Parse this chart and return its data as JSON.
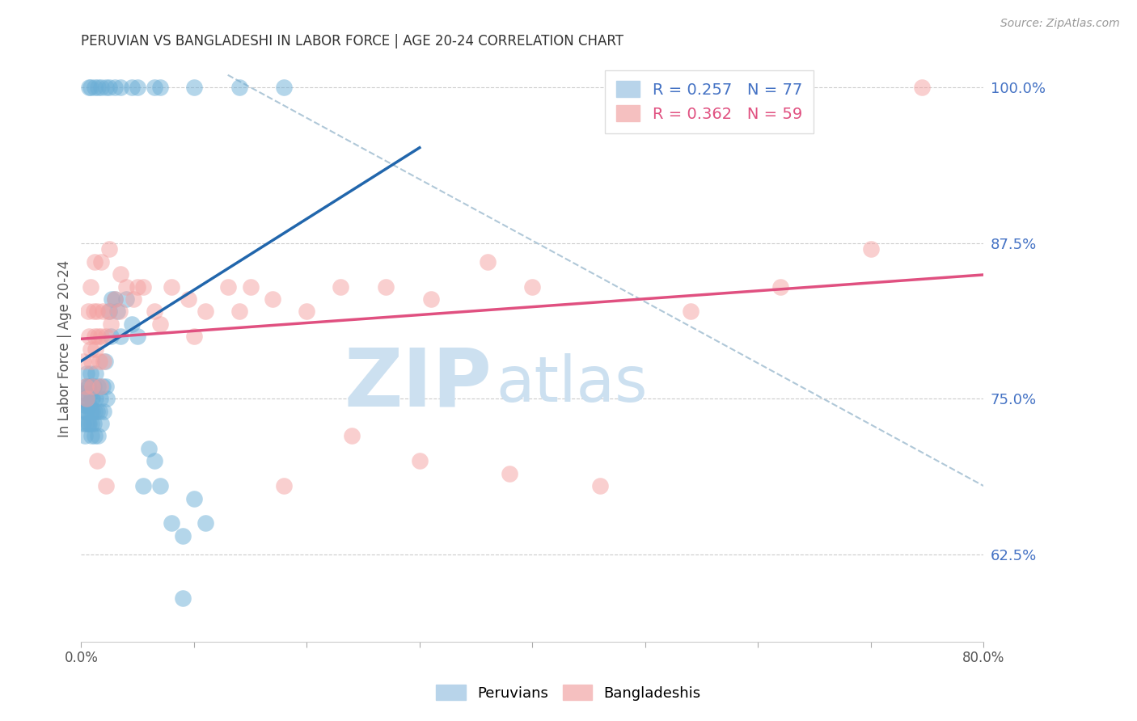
{
  "title": "PERUVIAN VS BANGLADESHI IN LABOR FORCE | AGE 20-24 CORRELATION CHART",
  "source": "Source: ZipAtlas.com",
  "ylabel": "In Labor Force | Age 20-24",
  "xlim": [
    0.0,
    0.8
  ],
  "ylim": [
    0.555,
    1.025
  ],
  "yticks": [
    0.625,
    0.75,
    0.875,
    1.0
  ],
  "ytick_labels": [
    "62.5%",
    "75.0%",
    "87.5%",
    "100.0%"
  ],
  "xticks": [
    0.0,
    0.1,
    0.2,
    0.3,
    0.4,
    0.5,
    0.6,
    0.7,
    0.8
  ],
  "xtick_labels": [
    "0.0%",
    "",
    "",
    "",
    "",
    "",
    "",
    "",
    "80.0%"
  ],
  "peruvian_color": "#6baed6",
  "bangladeshi_color": "#f4a0a0",
  "peruvian_R": 0.257,
  "peruvian_N": 77,
  "bangladeshi_R": 0.362,
  "bangladeshi_N": 59,
  "watermark": "ZIPatlas",
  "watermark_color": "#cce0f0",
  "blue_line_color": "#2166ac",
  "pink_line_color": "#e05080",
  "ref_line_color": "#b0c8d8",
  "peruvian_x": [
    0.001,
    0.002,
    0.002,
    0.003,
    0.003,
    0.003,
    0.004,
    0.004,
    0.004,
    0.005,
    0.005,
    0.005,
    0.006,
    0.006,
    0.007,
    0.007,
    0.007,
    0.008,
    0.008,
    0.008,
    0.009,
    0.009,
    0.009,
    0.01,
    0.01,
    0.01,
    0.011,
    0.011,
    0.012,
    0.012,
    0.013,
    0.013,
    0.014,
    0.015,
    0.015,
    0.016,
    0.017,
    0.018,
    0.019,
    0.02,
    0.021,
    0.022,
    0.023,
    0.025,
    0.026,
    0.027,
    0.03,
    0.032,
    0.035,
    0.04,
    0.045,
    0.05,
    0.055,
    0.06,
    0.065,
    0.07,
    0.08,
    0.09,
    0.1,
    0.11,
    0.007,
    0.012,
    0.018,
    0.025,
    0.035,
    0.05,
    0.07,
    0.1,
    0.14,
    0.18,
    0.008,
    0.015,
    0.022,
    0.03,
    0.045,
    0.065,
    0.09
  ],
  "peruvian_y": [
    0.74,
    0.75,
    0.73,
    0.72,
    0.745,
    0.755,
    0.73,
    0.76,
    0.74,
    0.75,
    0.77,
    0.74,
    0.76,
    0.73,
    0.745,
    0.76,
    0.73,
    0.755,
    0.77,
    0.74,
    0.73,
    0.75,
    0.72,
    0.74,
    0.76,
    0.75,
    0.73,
    0.76,
    0.74,
    0.72,
    0.75,
    0.77,
    0.74,
    0.72,
    0.76,
    0.74,
    0.75,
    0.73,
    0.76,
    0.74,
    0.78,
    0.76,
    0.75,
    0.82,
    0.8,
    0.83,
    0.83,
    0.82,
    0.8,
    0.83,
    0.81,
    0.8,
    0.68,
    0.71,
    0.7,
    0.68,
    0.65,
    0.64,
    0.67,
    0.65,
    1.0,
    1.0,
    1.0,
    1.0,
    1.0,
    1.0,
    1.0,
    1.0,
    1.0,
    1.0,
    1.0,
    1.0,
    1.0,
    1.0,
    1.0,
    1.0,
    0.59
  ],
  "bangladeshi_x": [
    0.002,
    0.004,
    0.005,
    0.006,
    0.007,
    0.008,
    0.009,
    0.01,
    0.011,
    0.012,
    0.013,
    0.014,
    0.015,
    0.016,
    0.017,
    0.018,
    0.019,
    0.02,
    0.022,
    0.024,
    0.026,
    0.03,
    0.034,
    0.04,
    0.046,
    0.055,
    0.065,
    0.08,
    0.095,
    0.11,
    0.13,
    0.15,
    0.17,
    0.2,
    0.23,
    0.27,
    0.31,
    0.36,
    0.4,
    0.008,
    0.012,
    0.018,
    0.025,
    0.035,
    0.05,
    0.07,
    0.1,
    0.14,
    0.18,
    0.24,
    0.3,
    0.38,
    0.46,
    0.54,
    0.62,
    0.7,
    0.745,
    0.014,
    0.022
  ],
  "bangladeshi_y": [
    0.78,
    0.76,
    0.75,
    0.82,
    0.8,
    0.79,
    0.78,
    0.76,
    0.82,
    0.8,
    0.79,
    0.82,
    0.8,
    0.78,
    0.76,
    0.8,
    0.82,
    0.78,
    0.8,
    0.82,
    0.81,
    0.83,
    0.82,
    0.84,
    0.83,
    0.84,
    0.82,
    0.84,
    0.83,
    0.82,
    0.84,
    0.84,
    0.83,
    0.82,
    0.84,
    0.84,
    0.83,
    0.86,
    0.84,
    0.84,
    0.86,
    0.86,
    0.87,
    0.85,
    0.84,
    0.81,
    0.8,
    0.82,
    0.68,
    0.72,
    0.7,
    0.69,
    0.68,
    0.82,
    0.84,
    0.87,
    1.0,
    0.7,
    0.68
  ]
}
